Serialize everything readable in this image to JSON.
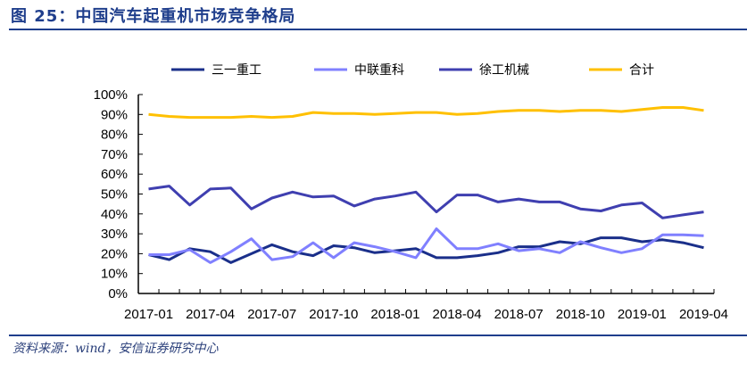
{
  "header": {
    "title": "图 25：中国汽车起重机市场竞争格局"
  },
  "footer": {
    "source": "资料来源：wind，安信证券研究中心"
  },
  "colors": {
    "sany": "#1a2f8a",
    "zoomlion": "#8080ff",
    "xcmg": "#3f3fb0",
    "total": "#ffc000",
    "accent": "#1f3e8c"
  },
  "chart_data": {
    "type": "line",
    "title": "中国汽车起重机市场竞争格局",
    "xlabel": "",
    "ylabel": "",
    "ylim": [
      0,
      100
    ],
    "yticks": [
      "0%",
      "10%",
      "20%",
      "30%",
      "40%",
      "50%",
      "60%",
      "70%",
      "80%",
      "90%",
      "100%"
    ],
    "xtick_labels": [
      "2017-01",
      "2017-04",
      "2017-07",
      "2017-10",
      "2018-01",
      "2018-04",
      "2018-07",
      "2018-10",
      "2019-01",
      "2019-04"
    ],
    "legend_position": "top",
    "grid": false,
    "x": [
      "2017-01",
      "2017-02",
      "2017-03",
      "2017-04",
      "2017-05",
      "2017-06",
      "2017-07",
      "2017-08",
      "2017-09",
      "2017-10",
      "2017-11",
      "2017-12",
      "2018-01",
      "2018-02",
      "2018-03",
      "2018-04",
      "2018-05",
      "2018-06",
      "2018-07",
      "2018-08",
      "2018-09",
      "2018-10",
      "2018-11",
      "2018-12",
      "2019-01",
      "2019-02",
      "2019-03",
      "2019-04"
    ],
    "series": [
      {
        "name": "三一重工",
        "color": "#1a2f8a",
        "values": [
          19.5,
          17,
          22.5,
          21,
          15.5,
          20,
          24.5,
          21,
          19,
          24,
          23,
          20.5,
          21.5,
          22.5,
          18,
          18,
          19,
          20.5,
          23.5,
          23.5,
          26,
          25,
          28,
          28,
          26,
          27,
          25.5,
          23
        ]
      },
      {
        "name": "中联重科",
        "color": "#8080ff",
        "values": [
          19.5,
          19.5,
          22,
          15.5,
          21,
          27.5,
          17,
          18.5,
          25.5,
          18,
          25.5,
          23.5,
          21,
          18,
          32.5,
          22.5,
          22.5,
          25,
          21.5,
          22.5,
          20.5,
          26,
          23,
          20.5,
          22.5,
          29.5,
          29.5,
          29
        ]
      },
      {
        "name": "徐工机械",
        "color": "#3f3fb0",
        "values": [
          52.5,
          54,
          44.5,
          52.5,
          53,
          42.5,
          48,
          51,
          48.5,
          49,
          44,
          47.5,
          49,
          51,
          41,
          49.5,
          49.5,
          46,
          47.5,
          46,
          46,
          42.5,
          41.5,
          44.5,
          45.5,
          38,
          39.5,
          41
        ]
      },
      {
        "name": "合计",
        "color": "#ffc000",
        "values": [
          90,
          89,
          88.5,
          88.5,
          88.5,
          89,
          88.5,
          89,
          91,
          90.5,
          90.5,
          90,
          90.5,
          91,
          91,
          90,
          90.5,
          91.5,
          92,
          92,
          91.5,
          92,
          92,
          91.5,
          92.5,
          93.5,
          93.5,
          92
        ]
      }
    ]
  }
}
